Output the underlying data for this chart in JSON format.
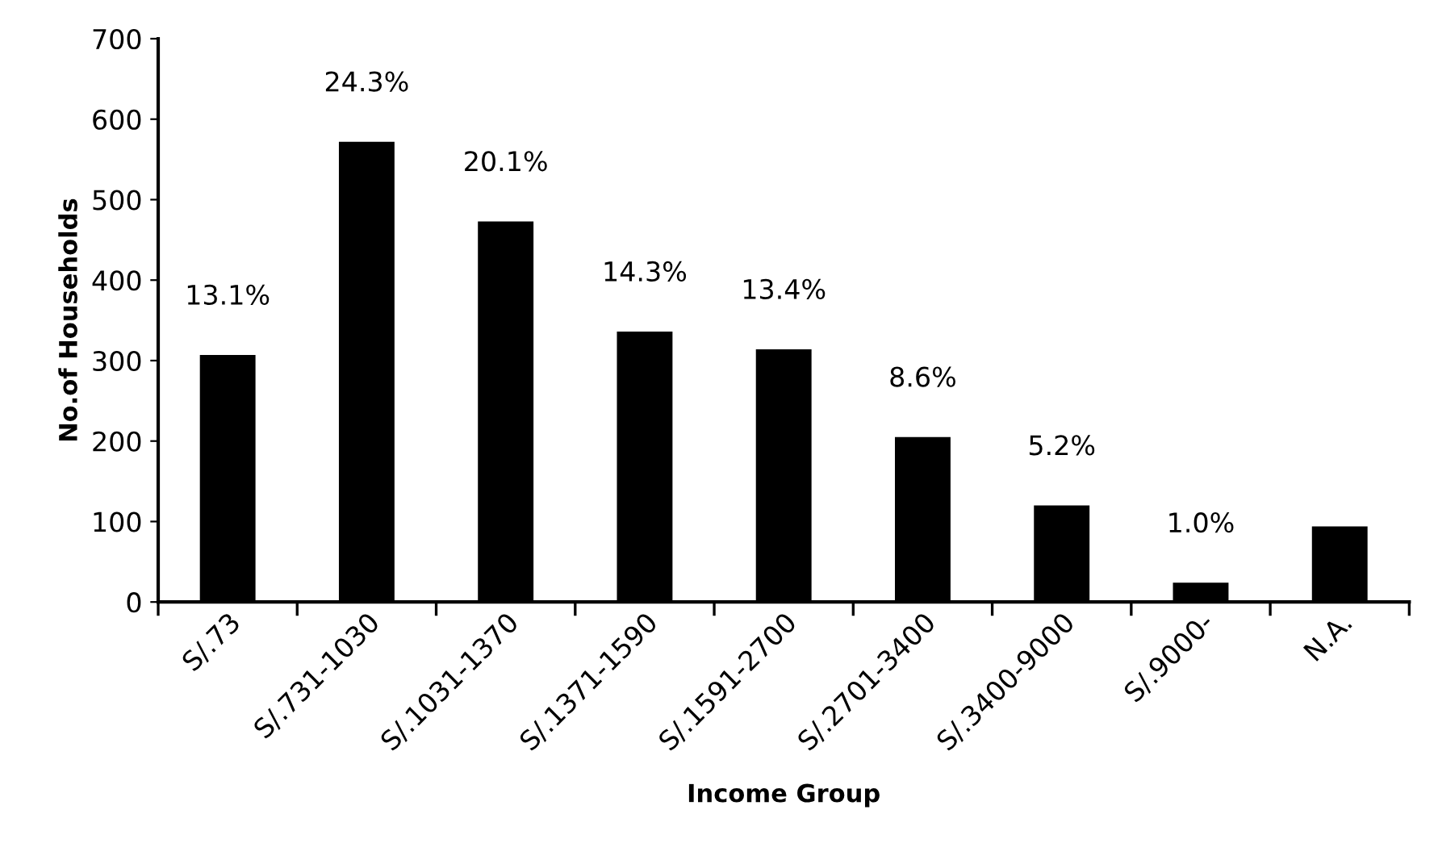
{
  "chart_data": {
    "type": "bar",
    "xlabel": "Income Group",
    "ylabel": "No.of Households",
    "categories": [
      "S/.73",
      "S/.731-1030",
      "S/.1031-1370",
      "S/.1371-1590",
      "S/.1591-2700",
      "S/.2701-3400",
      "S/.3400-9000",
      "S/.9000-",
      "N.A."
    ],
    "values": [
      307,
      572,
      473,
      336,
      314,
      205,
      120,
      24,
      94
    ],
    "annotations": [
      {
        "text": "13.1%",
        "x": "S/.73",
        "y": 307
      },
      {
        "text": "24.3%",
        "x": "S/.731-1030",
        "y": 572
      },
      {
        "text": "20.1%",
        "x": "S/.1031-1370",
        "y": 473
      },
      {
        "text": "14.3%",
        "x": "S/.1371-1590",
        "y": 336
      },
      {
        "text": "13.4%",
        "x": "S/.1591-2700",
        "y": 314
      },
      {
        "text": "8.6%",
        "x": "S/.2701-3400",
        "y": 205
      },
      {
        "text": "5.2%",
        "x": "S/.3400-9000",
        "y": 120
      },
      {
        "text": "1.0%",
        "x": "S/.9000-",
        "y": 24
      }
    ],
    "color": "#000000",
    "ylim": [
      0,
      700
    ],
    "yticks": [
      0,
      100,
      200,
      300,
      400,
      500,
      600,
      700
    ],
    "grid": false
  }
}
